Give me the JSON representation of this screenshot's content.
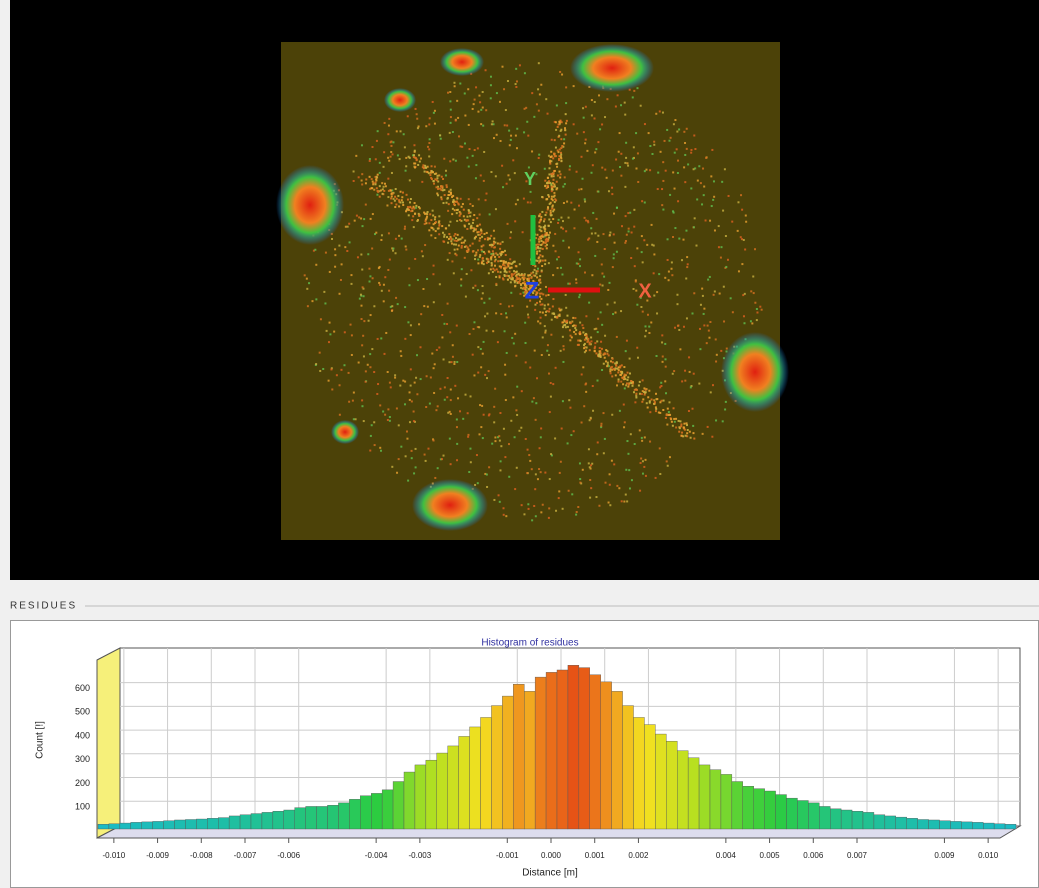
{
  "viewport": {
    "axis_labels": {
      "y": "Y",
      "z": "Z",
      "x": "X"
    }
  },
  "panel": {
    "title": "RESIDUES"
  },
  "chart_data": {
    "type": "histogram",
    "title": "Histogram of residues",
    "xlabel": "Distance [m]",
    "ylabel": "Count [!]",
    "bins": [
      -0.0105,
      -0.01025,
      -0.01,
      -0.00975,
      -0.0095,
      -0.00925,
      -0.009,
      -0.00875,
      -0.0085,
      -0.00825,
      -0.008,
      -0.00775,
      -0.0075,
      -0.00725,
      -0.007,
      -0.00675,
      -0.0065,
      -0.00625,
      -0.006,
      -0.00575,
      -0.0055,
      -0.00525,
      -0.005,
      -0.00475,
      -0.0045,
      -0.00425,
      -0.004,
      -0.00375,
      -0.0035,
      -0.00325,
      -0.003,
      -0.00275,
      -0.0025,
      -0.00225,
      -0.002,
      -0.00175,
      -0.0015,
      -0.00125,
      -0.001,
      -0.00075,
      -0.0005,
      -0.00025,
      0,
      0.00025,
      0.0005,
      0.00075,
      0.001,
      0.00125,
      0.0015,
      0.00175,
      0.002,
      0.00225,
      0.0025,
      0.00275,
      0.003,
      0.00325,
      0.0035,
      0.00375,
      0.004,
      0.00425,
      0.0045,
      0.00475,
      0.005,
      0.00525,
      0.0055,
      0.00575,
      0.006,
      0.00625,
      0.0065,
      0.00675,
      0.007,
      0.00725,
      0.0075,
      0.00775,
      0.008,
      0.00825,
      0.0085,
      0.00875,
      0.009,
      0.00925,
      0.0095,
      0.00975,
      0.01,
      0.01025,
      0.0105
    ],
    "values": [
      20,
      22,
      25,
      28,
      30,
      32,
      35,
      38,
      40,
      42,
      45,
      48,
      55,
      60,
      65,
      70,
      75,
      80,
      90,
      95,
      95,
      100,
      110,
      125,
      140,
      150,
      165,
      200,
      240,
      270,
      290,
      320,
      350,
      390,
      430,
      470,
      520,
      560,
      610,
      580,
      640,
      660,
      670,
      690,
      680,
      650,
      620,
      580,
      520,
      470,
      440,
      400,
      370,
      330,
      300,
      270,
      250,
      230,
      200,
      180,
      170,
      160,
      145,
      130,
      120,
      110,
      95,
      85,
      80,
      75,
      70,
      60,
      55,
      50,
      45,
      40,
      38,
      35,
      32,
      30,
      28,
      25,
      22,
      20
    ],
    "colormap": [
      "#18b8d8",
      "#2ccc40",
      "#b8e020",
      "#f4e020",
      "#f0a020",
      "#e02010"
    ],
    "xlim": [
      -0.0105,
      0.0105
    ],
    "xticks": [
      {
        "value": -0.01,
        "label": "-0.010"
      },
      {
        "value": -0.009,
        "label": "-0.009"
      },
      {
        "value": -0.008,
        "label": "-0.008"
      },
      {
        "value": -0.007,
        "label": "-0.007"
      },
      {
        "value": -0.006,
        "label": "-0.006"
      },
      {
        "value": -0.004,
        "label": "-0.004"
      },
      {
        "value": -0.003,
        "label": "-0.003"
      },
      {
        "value": -0.001,
        "label": "-0.001"
      },
      {
        "value": 0,
        "label": "0.000"
      },
      {
        "value": 0.001,
        "label": "0.001"
      },
      {
        "value": 0.002,
        "label": "0.002"
      },
      {
        "value": 0.004,
        "label": "0.004"
      },
      {
        "value": 0.005,
        "label": "0.005"
      },
      {
        "value": 0.006,
        "label": "0.006"
      },
      {
        "value": 0.007,
        "label": "0.007"
      },
      {
        "value": 0.009,
        "label": "0.009"
      },
      {
        "value": 0.01,
        "label": "0.010"
      }
    ],
    "ylim": [
      0,
      750
    ],
    "yticks": [
      100,
      200,
      300,
      400,
      500,
      600
    ],
    "grid": true
  }
}
